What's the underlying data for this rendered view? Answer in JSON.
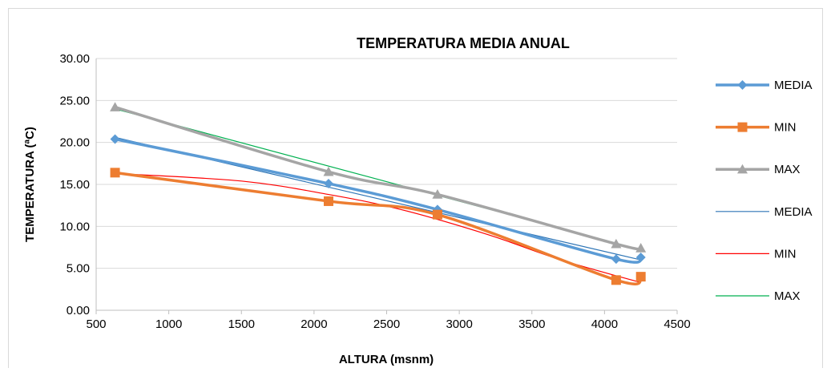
{
  "chart_data": {
    "type": "line",
    "title": "TEMPERATURA MEDIA ANUAL",
    "xlabel": "ALTURA (msnm)",
    "ylabel": "TEMPERATURA (ªC)",
    "xlim": [
      500,
      4500
    ],
    "ylim": [
      0,
      30
    ],
    "xticks": [
      "500",
      "1000",
      "1500",
      "2000",
      "2500",
      "3000",
      "3500",
      "4000",
      "4500"
    ],
    "yticks": [
      "0.00",
      "5.00",
      "10.00",
      "15.00",
      "20.00",
      "25.00",
      "30.00"
    ],
    "grid": "horizontal",
    "legend_position": "right",
    "series": [
      {
        "name": "MEDIA",
        "kind": "data",
        "marker": "diamond",
        "color": "#5b9bd5",
        "x": [
          630,
          2100,
          2850,
          4080,
          4250
        ],
        "y": [
          20.4,
          15.1,
          12.0,
          6.1,
          6.3
        ]
      },
      {
        "name": "MIN",
        "kind": "data",
        "marker": "square",
        "color": "#ed7d31",
        "x": [
          630,
          2100,
          2850,
          4080,
          4250
        ],
        "y": [
          16.4,
          13.0,
          11.4,
          3.6,
          4.0
        ]
      },
      {
        "name": "MAX",
        "kind": "data",
        "marker": "triangle",
        "color": "#a5a5a5",
        "x": [
          630,
          2100,
          2850,
          4080,
          4250
        ],
        "y": [
          24.2,
          16.5,
          13.8,
          7.9,
          7.4
        ]
      },
      {
        "name": "MEDIA",
        "kind": "trend",
        "color": "#2e75b6",
        "x": [
          630,
          4250
        ],
        "y": [
          20.6,
          6.0
        ]
      },
      {
        "name": "MIN",
        "kind": "trend",
        "color": "#ff0000",
        "x": [
          630,
          1500,
          2100,
          2600,
          3200,
          3700,
          4250
        ],
        "y": [
          16.3,
          15.4,
          13.8,
          12.0,
          9.0,
          6.0,
          3.3
        ]
      },
      {
        "name": "MAX",
        "kind": "trend",
        "color": "#00b050",
        "x": [
          630,
          4250
        ],
        "y": [
          24.0,
          7.2
        ]
      }
    ]
  }
}
